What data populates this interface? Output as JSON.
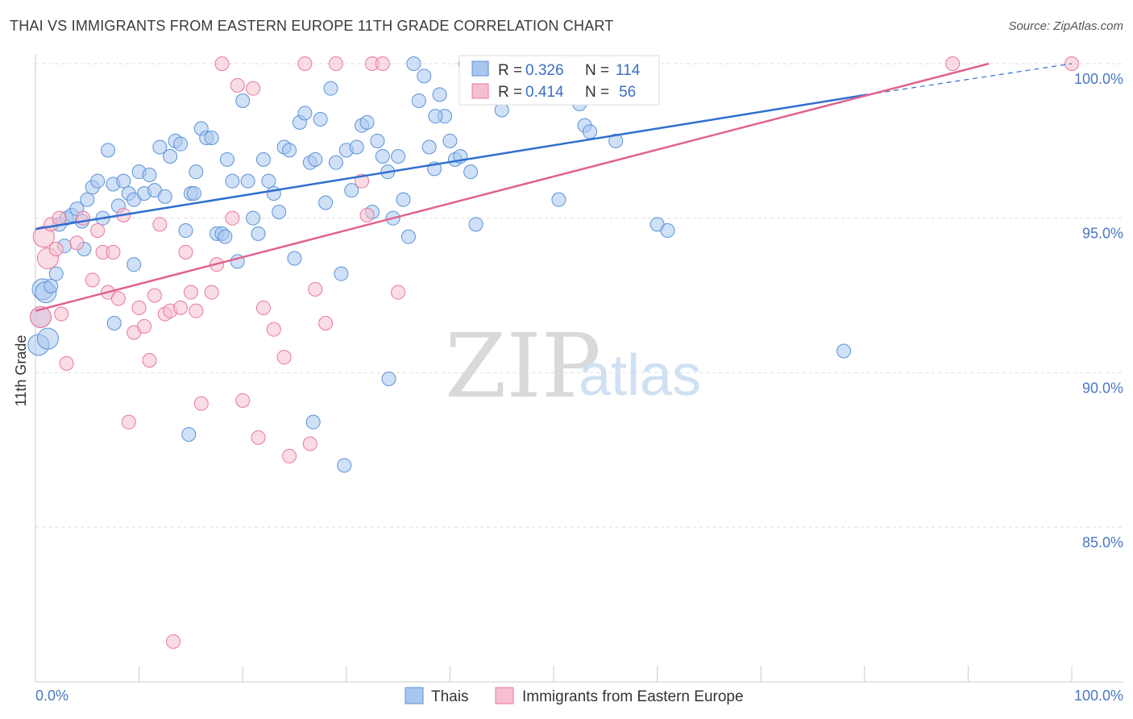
{
  "header": {
    "title": "THAI VS IMMIGRANTS FROM EASTERN EUROPE 11TH GRADE CORRELATION CHART",
    "source": "Source: ZipAtlas.com"
  },
  "watermark": {
    "zip": "ZIP",
    "atlas": "atlas"
  },
  "colors": {
    "thai": "#5b93d8",
    "thai_fill": "#a9c6ee",
    "ee": "#e8789d",
    "ee_fill": "#f6bfd0",
    "axis_tick_text": "#4a78c2",
    "grid": "#dddddd"
  },
  "stats": [
    {
      "r_label": "R =",
      "r_value": "0.326",
      "n_label": "N =",
      "n_value": "114"
    },
    {
      "r_label": "R =",
      "r_value": "0.414",
      "n_label": "N =",
      "n_value": "56"
    }
  ],
  "chart_data": {
    "type": "scatter",
    "ylabel": "11th Grade",
    "xlabel": "",
    "xlim": [
      0,
      100
    ],
    "ylim": [
      80.2,
      100.6
    ],
    "x_tick_labels": [
      "0.0%",
      "100.0%"
    ],
    "y_ticks": [
      {
        "value": 100,
        "label": "100.0%"
      },
      {
        "value": 95,
        "label": "95.0%"
      },
      {
        "value": 90,
        "label": "90.0%"
      },
      {
        "value": 85,
        "label": "85.0%"
      }
    ],
    "grid": true,
    "legend_position": "bottom",
    "series": [
      {
        "name": "Thais",
        "r": 0.326,
        "n": 114,
        "trend": {
          "x0": 0,
          "y0": 94.65,
          "x1": 80.3,
          "y1": 99.0,
          "dash_to_x": 100,
          "dash_to_y": 100.0
        },
        "points": [
          [
            0.3,
            90.9
          ],
          [
            0.5,
            91.8
          ],
          [
            0.7,
            92.7
          ],
          [
            1.2,
            91.1
          ],
          [
            1.0,
            92.6
          ],
          [
            1.5,
            92.8
          ],
          [
            2.0,
            93.2
          ],
          [
            2.3,
            94.8
          ],
          [
            2.8,
            94.1
          ],
          [
            3.0,
            95.0
          ],
          [
            3.5,
            95.1
          ],
          [
            4.0,
            95.3
          ],
          [
            4.5,
            94.9
          ],
          [
            5.0,
            95.6
          ],
          [
            5.5,
            96.0
          ],
          [
            6.0,
            96.2
          ],
          [
            6.5,
            95.0
          ],
          [
            7.0,
            97.2
          ],
          [
            7.5,
            96.1
          ],
          [
            8.0,
            95.4
          ],
          [
            8.5,
            96.2
          ],
          [
            9.0,
            95.8
          ],
          [
            9.5,
            95.6
          ],
          [
            10.0,
            96.5
          ],
          [
            10.5,
            95.8
          ],
          [
            11.0,
            96.4
          ],
          [
            11.5,
            95.9
          ],
          [
            12.0,
            97.3
          ],
          [
            12.5,
            95.7
          ],
          [
            13.0,
            97.0
          ],
          [
            13.5,
            97.5
          ],
          [
            14.0,
            97.4
          ],
          [
            14.5,
            94.6
          ],
          [
            15.0,
            95.8
          ],
          [
            15.3,
            95.8
          ],
          [
            15.5,
            96.5
          ],
          [
            16.0,
            97.9
          ],
          [
            16.5,
            97.6
          ],
          [
            17.0,
            97.6
          ],
          [
            17.5,
            94.5
          ],
          [
            18.0,
            94.5
          ],
          [
            18.5,
            96.9
          ],
          [
            19.0,
            96.2
          ],
          [
            19.5,
            93.6
          ],
          [
            20.0,
            98.8
          ],
          [
            20.5,
            96.2
          ],
          [
            21.0,
            95.0
          ],
          [
            21.5,
            94.5
          ],
          [
            22.0,
            96.9
          ],
          [
            22.5,
            96.2
          ],
          [
            23.0,
            95.8
          ],
          [
            23.5,
            95.2
          ],
          [
            24.0,
            97.3
          ],
          [
            24.5,
            97.2
          ],
          [
            25.0,
            93.7
          ],
          [
            25.5,
            98.1
          ],
          [
            26.0,
            98.4
          ],
          [
            26.5,
            96.8
          ],
          [
            27.0,
            96.9
          ],
          [
            27.5,
            98.2
          ],
          [
            28.0,
            95.5
          ],
          [
            28.5,
            99.2
          ],
          [
            29.0,
            96.8
          ],
          [
            29.5,
            93.2
          ],
          [
            30.0,
            97.2
          ],
          [
            30.5,
            95.9
          ],
          [
            31.0,
            97.3
          ],
          [
            31.5,
            98.0
          ],
          [
            32.0,
            98.1
          ],
          [
            32.5,
            95.2
          ],
          [
            33.0,
            97.5
          ],
          [
            33.5,
            97.0
          ],
          [
            34.0,
            96.5
          ],
          [
            34.5,
            95.0
          ],
          [
            35.0,
            97.0
          ],
          [
            35.5,
            95.6
          ],
          [
            36.0,
            94.4
          ],
          [
            36.5,
            100.0
          ],
          [
            37.0,
            98.8
          ],
          [
            37.5,
            99.6
          ],
          [
            38.0,
            97.3
          ],
          [
            38.5,
            96.6
          ],
          [
            39.0,
            99.0
          ],
          [
            39.5,
            98.3
          ],
          [
            40.0,
            97.5
          ],
          [
            40.5,
            96.9
          ],
          [
            41.0,
            97.0
          ],
          [
            41.5,
            100.0
          ],
          [
            42.0,
            96.5
          ],
          [
            42.5,
            94.8
          ],
          [
            43.5,
            100.0
          ],
          [
            44.0,
            100.0
          ],
          [
            45.0,
            98.5
          ],
          [
            47.0,
            99.5
          ],
          [
            48.5,
            100.0
          ],
          [
            49.0,
            100.0
          ],
          [
            50.0,
            100.0
          ],
          [
            51.0,
            99.4
          ],
          [
            52.0,
            100.0
          ],
          [
            52.5,
            98.7
          ],
          [
            53.0,
            98.0
          ],
          [
            53.5,
            97.8
          ],
          [
            55.0,
            100.0
          ],
          [
            56.0,
            97.5
          ],
          [
            60.0,
            94.8
          ],
          [
            61.0,
            94.6
          ],
          [
            78.0,
            90.7
          ],
          [
            14.8,
            88.0
          ],
          [
            26.8,
            88.4
          ],
          [
            29.8,
            87.0
          ],
          [
            34.1,
            89.8
          ],
          [
            7.6,
            91.6
          ],
          [
            9.5,
            93.5
          ],
          [
            4.7,
            94.0
          ],
          [
            18.3,
            94.4
          ],
          [
            50.5,
            95.6
          ],
          [
            38.6,
            98.3
          ]
        ]
      },
      {
        "name": "Immigrants from Eastern Europe",
        "r": 0.414,
        "n": 56,
        "trend": {
          "x0": 0,
          "y0": 92.0,
          "x1": 92.0,
          "y1": 100.0
        },
        "points": [
          [
            0.5,
            91.8
          ],
          [
            0.8,
            94.4
          ],
          [
            1.2,
            93.7
          ],
          [
            1.5,
            94.8
          ],
          [
            2.0,
            94.0
          ],
          [
            2.3,
            95.0
          ],
          [
            3.0,
            90.3
          ],
          [
            4.0,
            94.2
          ],
          [
            4.6,
            95.0
          ],
          [
            5.5,
            93.0
          ],
          [
            6.0,
            94.6
          ],
          [
            6.5,
            93.9
          ],
          [
            7.0,
            92.6
          ],
          [
            7.5,
            93.9
          ],
          [
            8.0,
            92.4
          ],
          [
            8.5,
            95.1
          ],
          [
            9.0,
            88.4
          ],
          [
            9.5,
            91.3
          ],
          [
            10.0,
            92.1
          ],
          [
            10.5,
            91.5
          ],
          [
            11.0,
            90.4
          ],
          [
            11.5,
            92.5
          ],
          [
            12.0,
            94.8
          ],
          [
            12.5,
            91.9
          ],
          [
            13.0,
            92.0
          ],
          [
            13.3,
            81.3
          ],
          [
            14.0,
            92.1
          ],
          [
            14.5,
            93.9
          ],
          [
            15.0,
            92.6
          ],
          [
            15.5,
            92.0
          ],
          [
            16.0,
            89.0
          ],
          [
            17.0,
            92.6
          ],
          [
            17.5,
            93.5
          ],
          [
            18.0,
            100.0
          ],
          [
            19.0,
            95.0
          ],
          [
            19.5,
            99.3
          ],
          [
            20.0,
            89.1
          ],
          [
            21.0,
            99.2
          ],
          [
            21.5,
            87.9
          ],
          [
            22.0,
            92.1
          ],
          [
            23.0,
            91.4
          ],
          [
            24.0,
            90.5
          ],
          [
            24.5,
            87.3
          ],
          [
            26.0,
            100.0
          ],
          [
            26.5,
            87.7
          ],
          [
            27.0,
            92.7
          ],
          [
            28.0,
            91.6
          ],
          [
            29.0,
            100.0
          ],
          [
            31.5,
            96.2
          ],
          [
            32.0,
            95.1
          ],
          [
            32.5,
            100.0
          ],
          [
            33.5,
            100.0
          ],
          [
            35.0,
            92.6
          ],
          [
            88.5,
            100.0
          ],
          [
            100.0,
            100.0
          ],
          [
            2.5,
            91.9
          ]
        ]
      }
    ]
  },
  "legend": {
    "thais": "Thais",
    "ee": "Immigrants from Eastern Europe"
  }
}
